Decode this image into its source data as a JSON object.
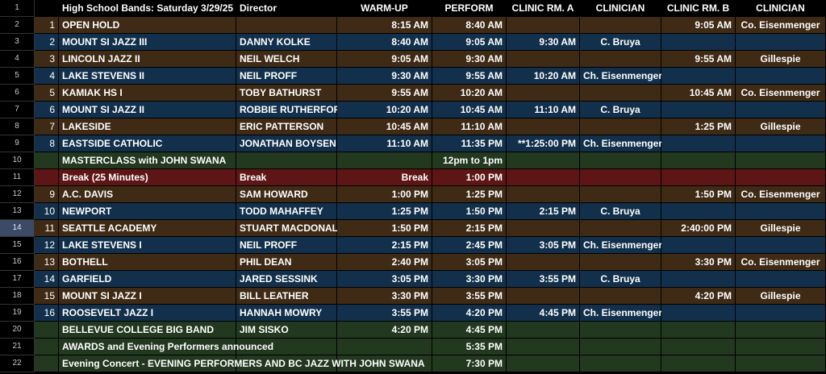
{
  "colors": {
    "header": "#000000",
    "brown": "#3f2a16",
    "blue": "#12304b",
    "green": "#22381f",
    "red": "#5e1515",
    "selection": "#8ab4f8"
  },
  "selected_cell": {
    "row": 14,
    "column": "clinic_rm_b"
  },
  "header": {
    "row_number": "1",
    "num": "",
    "band": "High School Bands: Saturday 3/29/25",
    "director": "Director",
    "warmup": "WARM-UP",
    "perform": "PERFORM",
    "clinic_a": "CLINIC RM. A",
    "clinician_a": "CLINICIAN",
    "clinic_b": "CLINIC RM. B",
    "clinician_b": "CLINICIAN"
  },
  "rows": [
    {
      "rn": "2",
      "theme": "brown",
      "num": "1",
      "band": "OPEN HOLD",
      "director": "",
      "warmup": "8:15 AM",
      "perform": "8:40 AM",
      "clinic_a": "",
      "clinician_a": "",
      "clinic_b": "9:05 AM",
      "clinician_b": "Co. Eisenmenger"
    },
    {
      "rn": "3",
      "theme": "blue",
      "num": "2",
      "band": "MOUNT SI JAZZ III",
      "director": "DANNY KOLKE",
      "warmup": "8:40 AM",
      "perform": "9:05 AM",
      "clinic_a": "9:30 AM",
      "clinician_a": "C. Bruya",
      "clinic_b": "",
      "clinician_b": ""
    },
    {
      "rn": "4",
      "theme": "brown",
      "num": "3",
      "band": "LINCOLN JAZZ II",
      "director": "NEIL WELCH",
      "warmup": "9:05 AM",
      "perform": "9:30 AM",
      "clinic_a": "",
      "clinician_a": "",
      "clinic_b": "9:55 AM",
      "clinician_b": "Gillespie"
    },
    {
      "rn": "5",
      "theme": "blue",
      "num": "4",
      "band": "LAKE STEVENS II",
      "director": "NEIL PROFF",
      "warmup": "9:30 AM",
      "perform": "9:55 AM",
      "clinic_a": "10:20 AM",
      "clinician_a": "Ch. Eisenmenger",
      "clinic_b": "",
      "clinician_b": ""
    },
    {
      "rn": "6",
      "theme": "brown",
      "num": "5",
      "band": "KAMIAK HS I",
      "director": "TOBY BATHURST",
      "warmup": "9:55 AM",
      "perform": "10:20 AM",
      "clinic_a": "",
      "clinician_a": "",
      "clinic_b": "10:45 AM",
      "clinician_b": "Co. Eisenmenger"
    },
    {
      "rn": "7",
      "theme": "blue",
      "num": "6",
      "band": "MOUNT SI JAZZ II",
      "director": "ROBBIE RUTHERFORD",
      "warmup": "10:20 AM",
      "perform": "10:45 AM",
      "clinic_a": "11:10 AM",
      "clinician_a": "C. Bruya",
      "clinic_b": "",
      "clinician_b": ""
    },
    {
      "rn": "8",
      "theme": "brown",
      "num": "7",
      "band": "LAKESIDE",
      "director": "ERIC PATTERSON",
      "warmup": "10:45 AM",
      "perform": "11:10 AM",
      "clinic_a": "",
      "clinician_a": "",
      "clinic_b": "1:25 PM",
      "clinician_b": "Gillespie"
    },
    {
      "rn": "9",
      "theme": "blue",
      "num": "8",
      "band": "EASTSIDE CATHOLIC",
      "director": "JONATHAN BOYSEN",
      "warmup": "11:10 AM",
      "perform": "11:35 PM",
      "clinic_a": "**1:25:00 PM",
      "clinician_a": "Ch. Eisenmenger",
      "clinic_b": "",
      "clinician_b": ""
    },
    {
      "rn": "10",
      "theme": "green",
      "num": "",
      "band": "MASTERCLASS with JOHN SWANA",
      "director": "",
      "warmup": "",
      "perform": "12pm to 1pm",
      "clinic_a": "",
      "clinician_a": "",
      "clinic_b": "",
      "clinician_b": ""
    },
    {
      "rn": "11",
      "theme": "red",
      "num": "",
      "band": "Break (25 Minutes)",
      "director": "Break",
      "warmup": "Break",
      "perform": "1:00 PM",
      "clinic_a": "",
      "clinician_a": "",
      "clinic_b": "",
      "clinician_b": ""
    },
    {
      "rn": "12",
      "theme": "brown",
      "num": "9",
      "band": "A.C. DAVIS",
      "director": "SAM HOWARD",
      "warmup": "1:00 PM",
      "perform": "1:25 PM",
      "clinic_a": "",
      "clinician_a": "",
      "clinic_b": "1:50 PM",
      "clinician_b": "Co. Eisenmenger"
    },
    {
      "rn": "13",
      "theme": "blue",
      "num": "10",
      "band": "NEWPORT",
      "director": "TODD MAHAFFEY",
      "warmup": "1:25 PM",
      "perform": "1:50 PM",
      "clinic_a": "2:15 PM",
      "clinician_a": "C. Bruya",
      "clinic_b": "",
      "clinician_b": ""
    },
    {
      "rn": "14",
      "theme": "brown",
      "num": "11",
      "band": "SEATTLE ACADEMY",
      "director": "STUART MACDONALD",
      "warmup": "1:50 PM",
      "perform": "2:15 PM",
      "clinic_a": "",
      "clinician_a": "",
      "clinic_b": "2:40:00 PM",
      "clinician_b": "Gillespie"
    },
    {
      "rn": "15",
      "theme": "blue",
      "num": "12",
      "band": "LAKE STEVENS I",
      "director": "NEIL PROFF",
      "warmup": "2:15 PM",
      "perform": "2:45 PM",
      "clinic_a": "3:05 PM",
      "clinician_a": "Ch. Eisenmenger",
      "clinic_b": "",
      "clinician_b": ""
    },
    {
      "rn": "16",
      "theme": "brown",
      "num": "13",
      "band": "BOTHELL",
      "director": "PHIL DEAN",
      "warmup": "2:40 PM",
      "perform": "3:05 PM",
      "clinic_a": "",
      "clinician_a": "",
      "clinic_b": "3:30 PM",
      "clinician_b": "Co. Eisenmenger"
    },
    {
      "rn": "17",
      "theme": "blue",
      "num": "14",
      "band": "GARFIELD",
      "director": "JARED SESSINK",
      "warmup": "3:05 PM",
      "perform": "3:30 PM",
      "clinic_a": "3:55 PM",
      "clinician_a": "C. Bruya",
      "clinic_b": "",
      "clinician_b": ""
    },
    {
      "rn": "18",
      "theme": "brown",
      "num": "15",
      "band": "MOUNT SI  JAZZ I",
      "director": "BILL LEATHER",
      "warmup": "3:30 PM",
      "perform": "3:55 PM",
      "clinic_a": "",
      "clinician_a": "",
      "clinic_b": "4:20 PM",
      "clinician_b": "Gillespie"
    },
    {
      "rn": "19",
      "theme": "blue",
      "num": "16",
      "band": "ROOSEVELT JAZZ I",
      "director": "HANNAH MOWRY",
      "warmup": "3:55 PM",
      "perform": "4:20 PM",
      "clinic_a": "4:45 PM",
      "clinician_a": "Ch. Eisenmenger",
      "clinic_b": "",
      "clinician_b": ""
    },
    {
      "rn": "20",
      "theme": "green",
      "num": "",
      "band": "BELLEVUE COLLEGE BIG BAND",
      "director": "JIM SISKO",
      "warmup": "4:20 PM",
      "perform": "4:45 PM",
      "clinic_a": "",
      "clinician_a": "",
      "clinic_b": "",
      "clinician_b": ""
    },
    {
      "rn": "21",
      "theme": "green",
      "num": "",
      "band": "AWARDS and Evening Performers announced",
      "director": "",
      "warmup": "",
      "perform": "5:35 PM",
      "clinic_a": "",
      "clinician_a": "",
      "clinic_b": "",
      "clinician_b": ""
    },
    {
      "rn": "22",
      "theme": "green",
      "num": "",
      "band": "Evening Concert - EVENING PERFORMERS AND BC JAZZ WITH JOHN SWANA",
      "director": "",
      "warmup": "",
      "perform": "7:30 PM",
      "clinic_a": "",
      "clinician_a": "",
      "clinic_b": "",
      "clinician_b": ""
    }
  ]
}
